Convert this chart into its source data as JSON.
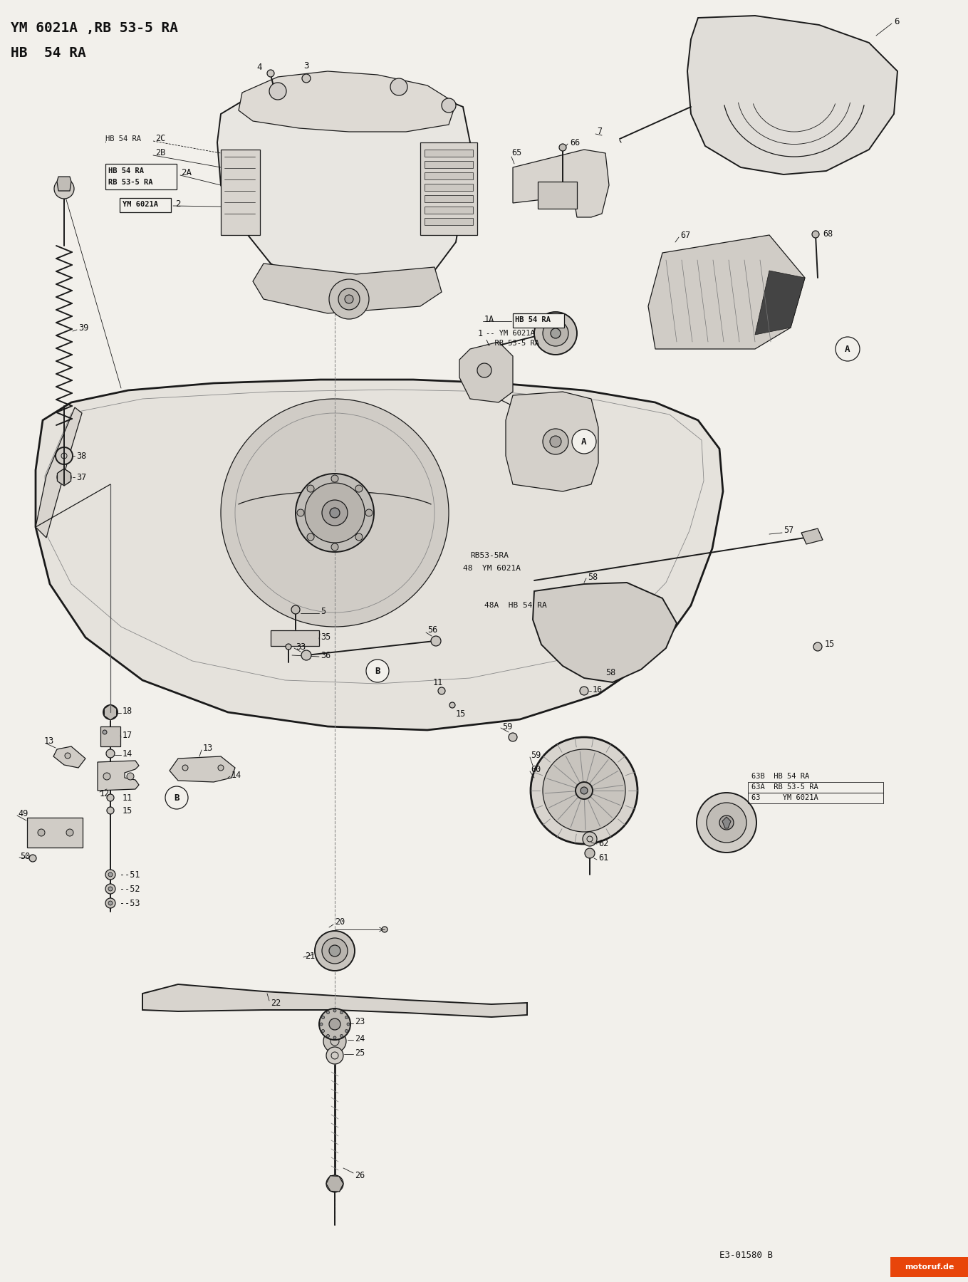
{
  "bg_color": "#f2f0eb",
  "title_line1": "YM 6021A ,RB 53-5 RA",
  "title_line2": "HB  54 RA",
  "watermark": "motoruf.de",
  "ref_code": "E3-01580 B",
  "line_color": "#1a1a1a",
  "text_color": "#111111"
}
